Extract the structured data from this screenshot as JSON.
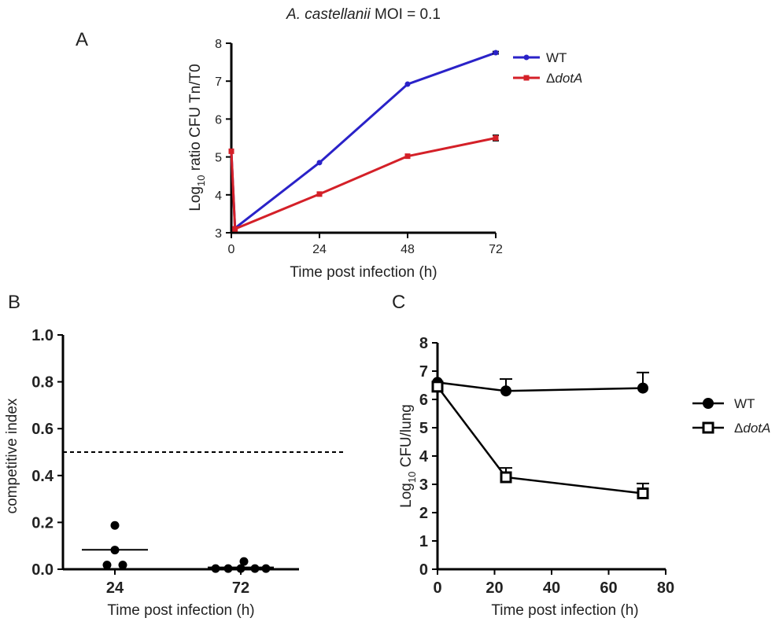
{
  "figure_title": {
    "italic": "A. castellanii",
    "rest": " MOI = 0.1"
  },
  "chart_data": [
    {
      "panel": "A",
      "type": "line",
      "xlabel": "Time post infection (h)",
      "ylabel": {
        "pre": "Log",
        "sub": "10",
        "post": " ratio CFU Tn/T0"
      },
      "xlim": [
        0,
        72
      ],
      "ylim": [
        3,
        8
      ],
      "xticks": [
        0,
        24,
        48,
        72
      ],
      "yticks": [
        3,
        4,
        5,
        6,
        7,
        8
      ],
      "legend_position": "right",
      "series": [
        {
          "name": "WT",
          "color": "#2a22c8",
          "marker": "circle",
          "x": [
            0,
            1,
            24,
            48,
            72
          ],
          "y": [
            5.15,
            3.12,
            4.85,
            6.92,
            7.75
          ],
          "err": [
            0,
            0,
            0,
            0,
            0.03
          ]
        },
        {
          "name": "ΔdotA",
          "name_prefix": "Δ",
          "name_italic": "dotA",
          "color": "#d42028",
          "marker": "square",
          "x": [
            0,
            1,
            24,
            48,
            72
          ],
          "y": [
            5.15,
            3.1,
            4.02,
            5.02,
            5.5
          ],
          "err": [
            0,
            0,
            0,
            0,
            0.07
          ]
        }
      ]
    },
    {
      "panel": "B",
      "type": "scatter",
      "xlabel": "Time post infection (h)",
      "ylabel": "competitive index",
      "categories": [
        "24",
        "72"
      ],
      "ylim": [
        0,
        1
      ],
      "yticks": [
        "0.0",
        "0.2",
        "0.4",
        "0.6",
        "0.8",
        "1.0"
      ],
      "reference_line": 0.5,
      "groups": [
        {
          "category": "24",
          "points": [
            0.187,
            0.082,
            0.018,
            0.018
          ],
          "mean": 0.083
        },
        {
          "category": "72",
          "points": [
            0.003,
            0.003,
            0.003,
            0.033,
            0.003,
            0.003
          ],
          "mean": 0.008
        }
      ]
    },
    {
      "panel": "C",
      "type": "line",
      "xlabel": "Time post infection (h)",
      "ylabel": {
        "pre": "Log",
        "sub": "10",
        "post": " CFU/lung"
      },
      "xlim": [
        0,
        80
      ],
      "ylim": [
        0,
        8
      ],
      "xticks": [
        0,
        20,
        40,
        60,
        80
      ],
      "yticks": [
        0,
        1,
        2,
        3,
        4,
        5,
        6,
        7,
        8
      ],
      "legend_position": "right",
      "series": [
        {
          "name": "WT",
          "marker": "filled-circle",
          "color": "#000000",
          "x": [
            0,
            24,
            72
          ],
          "y": [
            6.6,
            6.3,
            6.4
          ],
          "err": [
            0,
            0.42,
            0.55
          ]
        },
        {
          "name": "ΔdotA",
          "name_prefix": "Δ",
          "name_italic": "dotA",
          "marker": "open-square",
          "color": "#000000",
          "x": [
            0,
            24,
            72
          ],
          "y": [
            6.45,
            3.25,
            2.68
          ],
          "err": [
            0,
            0.33,
            0.35
          ]
        }
      ]
    }
  ]
}
